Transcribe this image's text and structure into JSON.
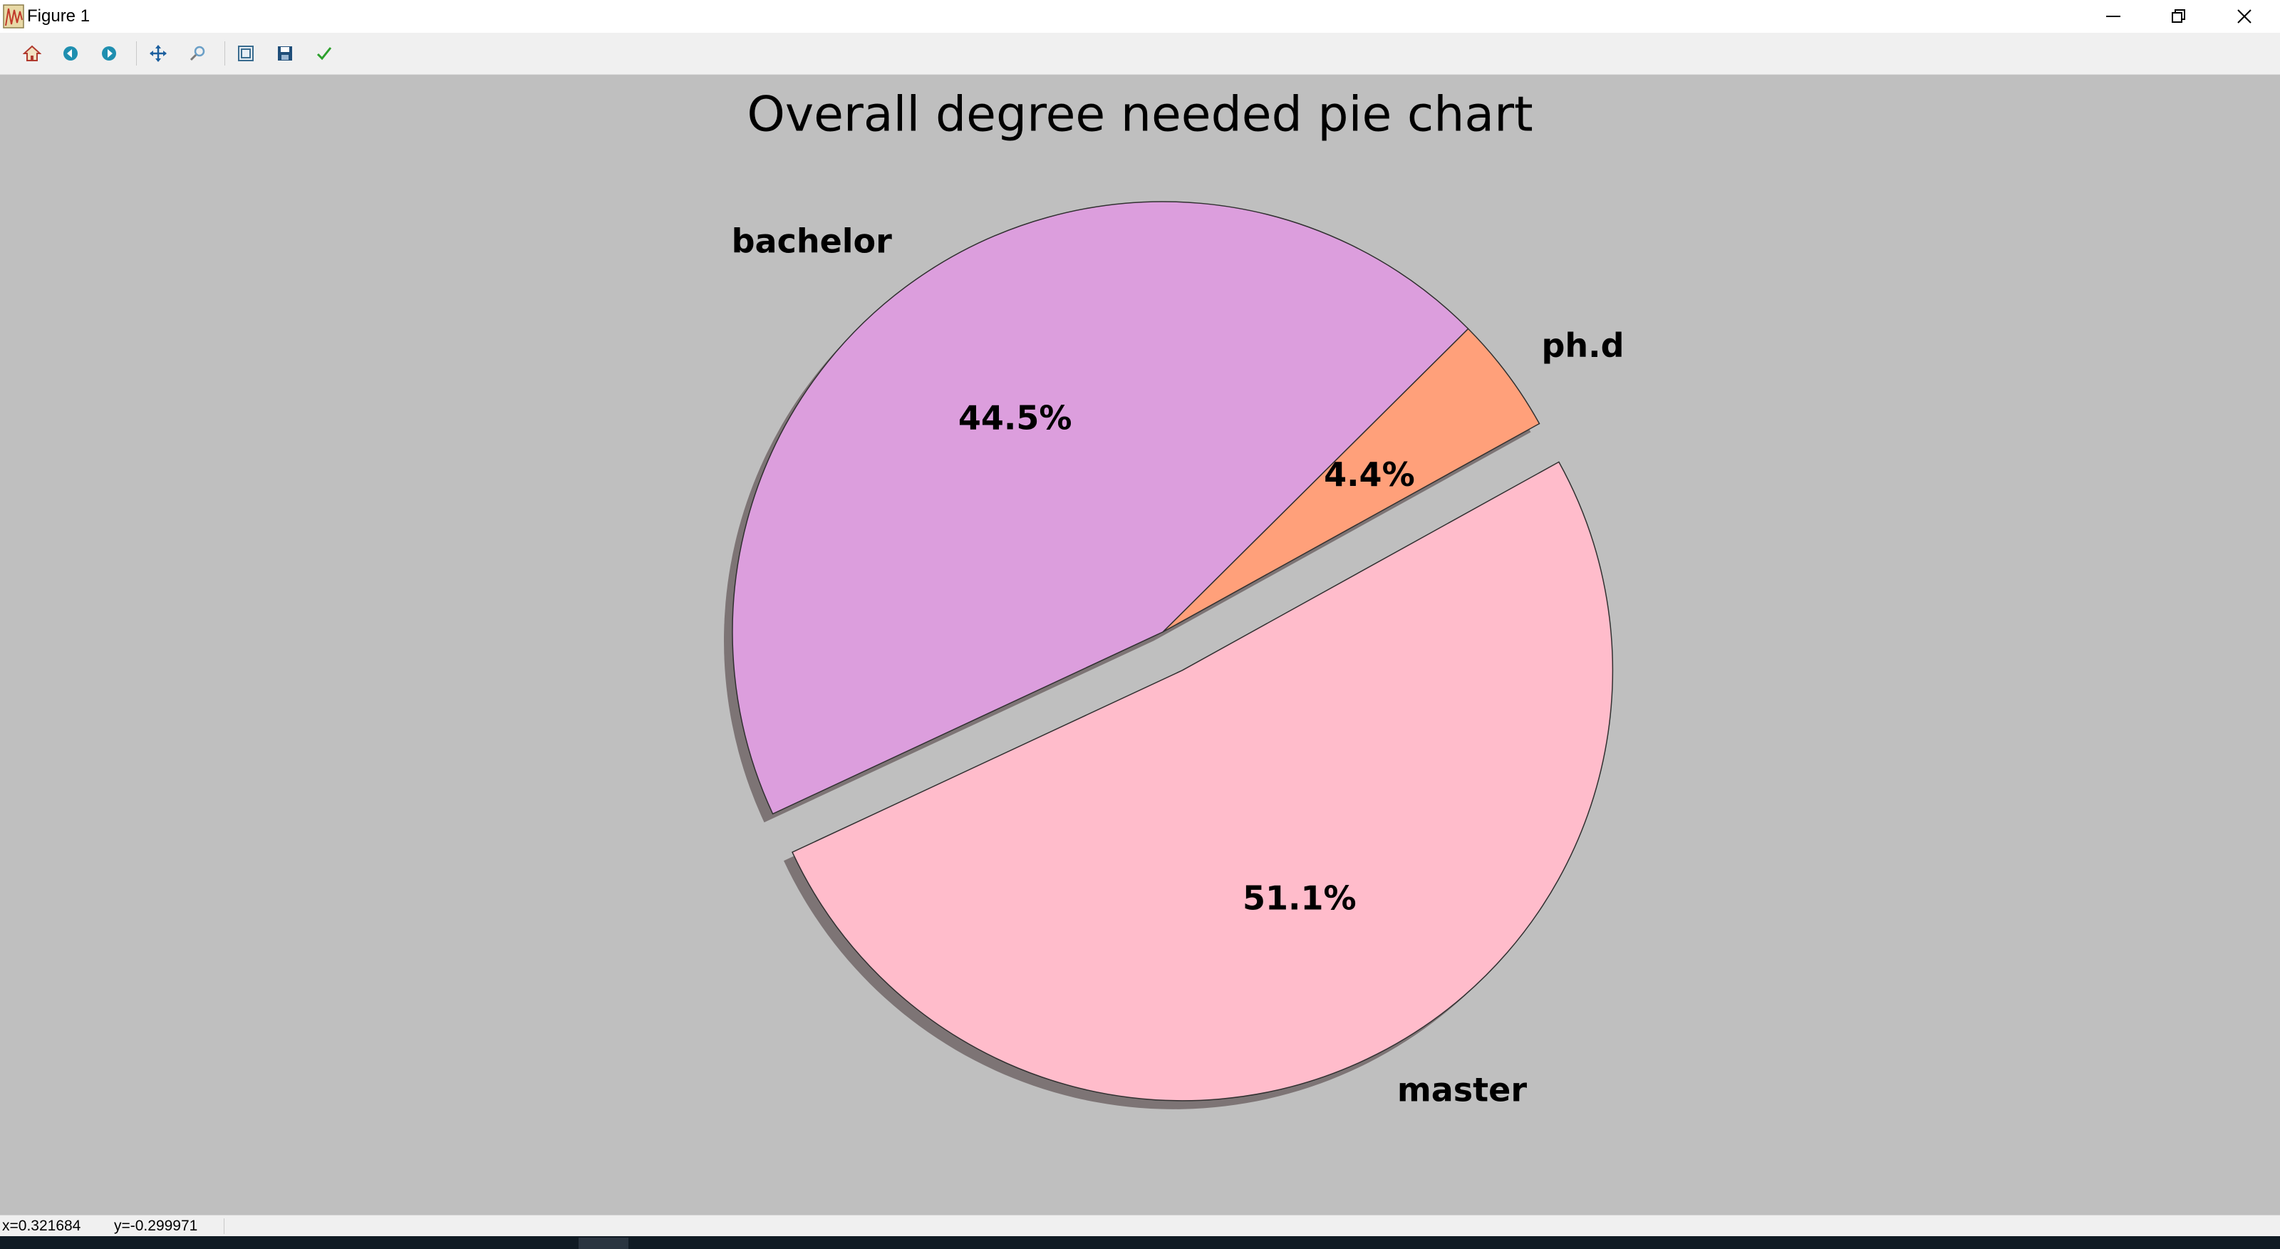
{
  "window": {
    "title": "Figure 1",
    "controls": [
      "minimize-icon",
      "restore-icon",
      "close-icon"
    ]
  },
  "toolbar": {
    "buttons": [
      {
        "name": "home-button",
        "icon": "home-icon",
        "color": "#b03a2e"
      },
      {
        "name": "back-button",
        "icon": "back-arrow-icon",
        "color": "#1f8fb0"
      },
      {
        "name": "forward-button",
        "icon": "forward-arrow-icon",
        "color": "#1f8fb0"
      },
      {
        "name": "pan-button",
        "icon": "pan-icon",
        "color": "#1c5f9e"
      },
      {
        "name": "zoom-button",
        "icon": "zoom-icon",
        "color": "#6a9fc7"
      },
      {
        "name": "configure-subplots-button",
        "icon": "subplots-icon",
        "color": "#3a6c8f"
      },
      {
        "name": "save-button",
        "icon": "save-icon",
        "color": "#1f4e79"
      },
      {
        "name": "edit-parameters-button",
        "icon": "check-icon",
        "color": "#2ca02c"
      }
    ]
  },
  "status": {
    "x_readout": "x=0.321684",
    "y_readout": "y=-0.299971"
  },
  "chart_data": {
    "type": "pie",
    "title": "Overall degree needed pie chart",
    "slices": [
      {
        "label": "master",
        "value": 51.1,
        "pct_label": "51.1%",
        "color": "#ffbccb",
        "explode": true
      },
      {
        "label": "ph.d",
        "value": 4.4,
        "pct_label": "4.4%",
        "color": "#ffa07a",
        "explode": false
      },
      {
        "label": "bachelor",
        "value": 44.5,
        "pct_label": "44.5%",
        "color": "#dc9edd",
        "explode": false
      }
    ],
    "start_angle_deg": 205,
    "counterclock": true,
    "shadow": true,
    "edge_color": "#303030",
    "shadow_color": "#7d7475",
    "background": "#bfbfbf"
  }
}
